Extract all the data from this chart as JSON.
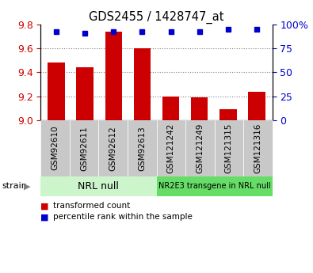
{
  "title": "GDS2455 / 1428747_at",
  "samples": [
    "GSM92610",
    "GSM92611",
    "GSM92612",
    "GSM92613",
    "GSM121242",
    "GSM121249",
    "GSM121315",
    "GSM121316"
  ],
  "red_values": [
    9.48,
    9.44,
    9.74,
    9.6,
    9.2,
    9.19,
    9.09,
    9.24
  ],
  "blue_values": [
    93,
    91,
    93,
    93,
    93,
    93,
    95,
    95
  ],
  "ylim_left": [
    9.0,
    9.8
  ],
  "ylim_right": [
    0,
    100
  ],
  "yticks_left": [
    9.0,
    9.2,
    9.4,
    9.6,
    9.8
  ],
  "yticks_right": [
    0,
    25,
    50,
    75,
    100
  ],
  "group1_label": "NRL null",
  "group2_label": "NR2E3 transgene in NRL null",
  "group1_color": "#ccf5cc",
  "group2_color": "#66dd66",
  "tick_bg_color": "#c8c8c8",
  "red_color": "#cc0000",
  "blue_color": "#0000cc",
  "legend_red_label": "transformed count",
  "legend_blue_label": "percentile rank within the sample",
  "strain_label": "strain",
  "bar_bottom": 9.0,
  "bar_width": 0.6
}
